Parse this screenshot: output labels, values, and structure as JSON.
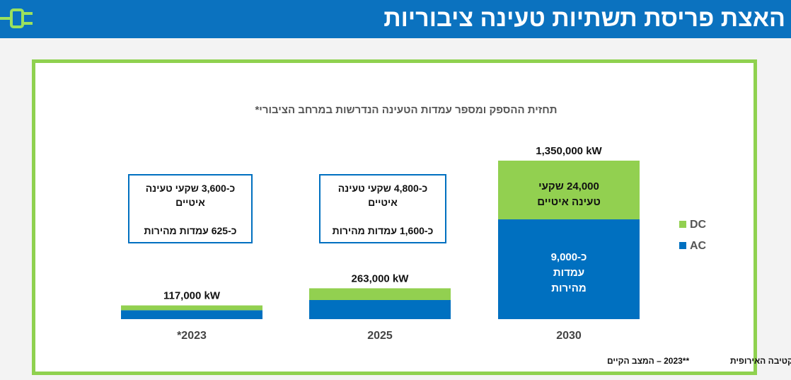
{
  "header": {
    "title": "האצת פריסת תשתיות טעינה ציבוריות"
  },
  "colors": {
    "dc": "#92d050",
    "ac": "#0070c0",
    "header_bg": "#0b72bf",
    "frame": "#8fd14f"
  },
  "chart_data": {
    "type": "bar",
    "stacked": true,
    "title": "תחזית ההספק ומספר עמדות הטעינה הנדרשות במרחב הציבורי*",
    "categories": [
      "2023**",
      "2025",
      "2030"
    ],
    "category_labels": [
      "*2023",
      "2025",
      "2030"
    ],
    "totals": [
      117000,
      263000,
      1350000
    ],
    "total_labels": [
      "117,000 kW",
      "263,000 kW",
      "1,350,000  kW"
    ],
    "series": [
      {
        "name": "AC",
        "values": [
          76000,
          163000,
          850000
        ]
      },
      {
        "name": "DC",
        "values": [
          41000,
          100000,
          500000
        ]
      }
    ],
    "ylim": [
      0,
      1350000
    ],
    "grid": false,
    "legend": {
      "position": "right",
      "items": [
        "DC",
        "AC"
      ]
    },
    "notes": [
      "כ-3,600 שקעי טעינה\nאיטיים\n\nכ-625 עמדות מהירות",
      "כ-4,800 שקעי טעינה\nאיטיים\n\nכ-1,600 עמדות מהירות"
    ],
    "bar_texts": {
      "dc": "24,000 שקעי\nטעינה איטיים",
      "ac": "כ-9,000\nעמדות\nמהירות"
    },
    "footnotes": {
      "directive": "*על פי הדירקטיבה האירופית",
      "current": "**2023 – המצב הקיים"
    }
  }
}
